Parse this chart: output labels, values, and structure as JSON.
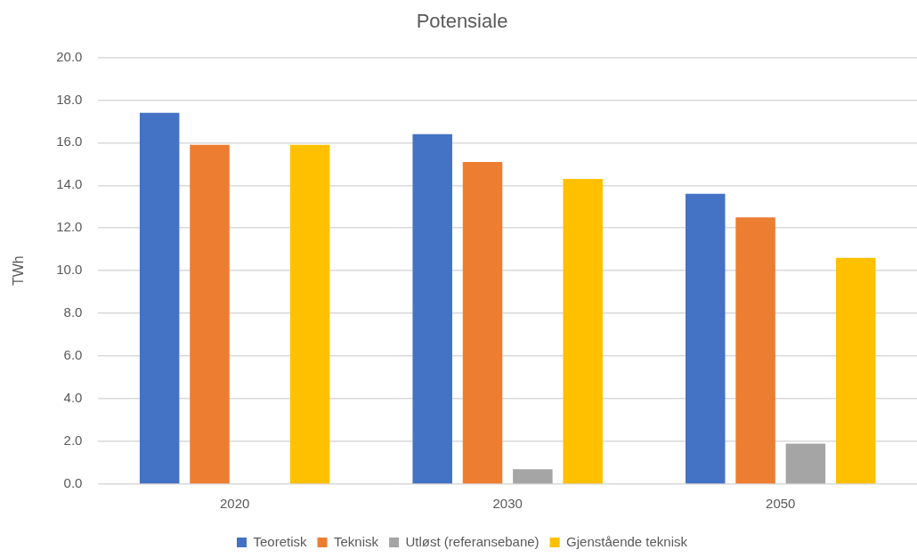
{
  "chart_data": {
    "type": "bar",
    "title": "Potensiale",
    "ylabel": "TWh",
    "categories": [
      "2020",
      "2030",
      "2050"
    ],
    "series": [
      {
        "name": "Teoretisk",
        "color": "#4472c4",
        "values": [
          17.4,
          16.4,
          13.6
        ]
      },
      {
        "name": "Teknisk",
        "color": "#ed7d31",
        "values": [
          15.9,
          15.1,
          12.5
        ]
      },
      {
        "name": "Utløst (referansebane)",
        "color": "#a5a5a5",
        "values": [
          0,
          0.7,
          1.9
        ]
      },
      {
        "name": "Gjenstående teknisk",
        "color": "#ffc000",
        "values": [
          15.9,
          14.3,
          10.6
        ]
      }
    ],
    "ylim": [
      0,
      20
    ],
    "yticks": [
      {
        "value": 0,
        "label": "0.0"
      },
      {
        "value": 2,
        "label": "2.0"
      },
      {
        "value": 4,
        "label": "4.0"
      },
      {
        "value": 6,
        "label": "6.0"
      },
      {
        "value": 8,
        "label": "8.0"
      },
      {
        "value": 10,
        "label": "10.0"
      },
      {
        "value": 12,
        "label": "12.0"
      },
      {
        "value": 14,
        "label": "14.0"
      },
      {
        "value": 16,
        "label": "16.0"
      },
      {
        "value": 18,
        "label": "18.0"
      },
      {
        "value": 20,
        "label": "20.0"
      }
    ],
    "grid": "y",
    "legend": "bottom"
  }
}
